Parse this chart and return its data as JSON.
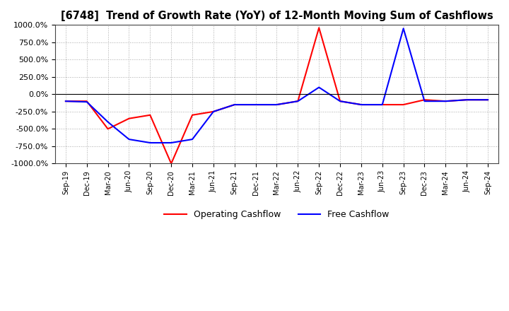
{
  "title": "[6748]  Trend of Growth Rate (YoY) of 12-Month Moving Sum of Cashflows",
  "ylim": [
    -1000,
    1000
  ],
  "yticks": [
    -1000,
    -750,
    -500,
    -250,
    0,
    250,
    500,
    750,
    1000
  ],
  "background_color": "#ffffff",
  "grid_color": "#aaaaaa",
  "operating_color": "#ff0000",
  "free_color": "#0000ff",
  "legend_labels": [
    "Operating Cashflow",
    "Free Cashflow"
  ],
  "x_labels": [
    "Sep-19",
    "Dec-19",
    "Mar-20",
    "Jun-20",
    "Sep-20",
    "Dec-20",
    "Mar-21",
    "Jun-21",
    "Sep-21",
    "Dec-21",
    "Mar-22",
    "Jun-22",
    "Sep-22",
    "Dec-22",
    "Mar-23",
    "Jun-23",
    "Sep-23",
    "Dec-23",
    "Mar-24",
    "Jun-24",
    "Sep-24"
  ],
  "operating_cashflow": [
    -100,
    -100,
    -500,
    -350,
    -300,
    -1000,
    -300,
    -250,
    -150,
    -150,
    -150,
    -100,
    960,
    -100,
    -150,
    -150,
    -150,
    -80,
    -100,
    -80,
    -80
  ],
  "free_cashflow": [
    -100,
    -110,
    -400,
    -650,
    -700,
    -700,
    -650,
    -250,
    -150,
    -150,
    -150,
    -100,
    100,
    -100,
    -150,
    -150,
    950,
    -100,
    -100,
    -80,
    -80
  ]
}
